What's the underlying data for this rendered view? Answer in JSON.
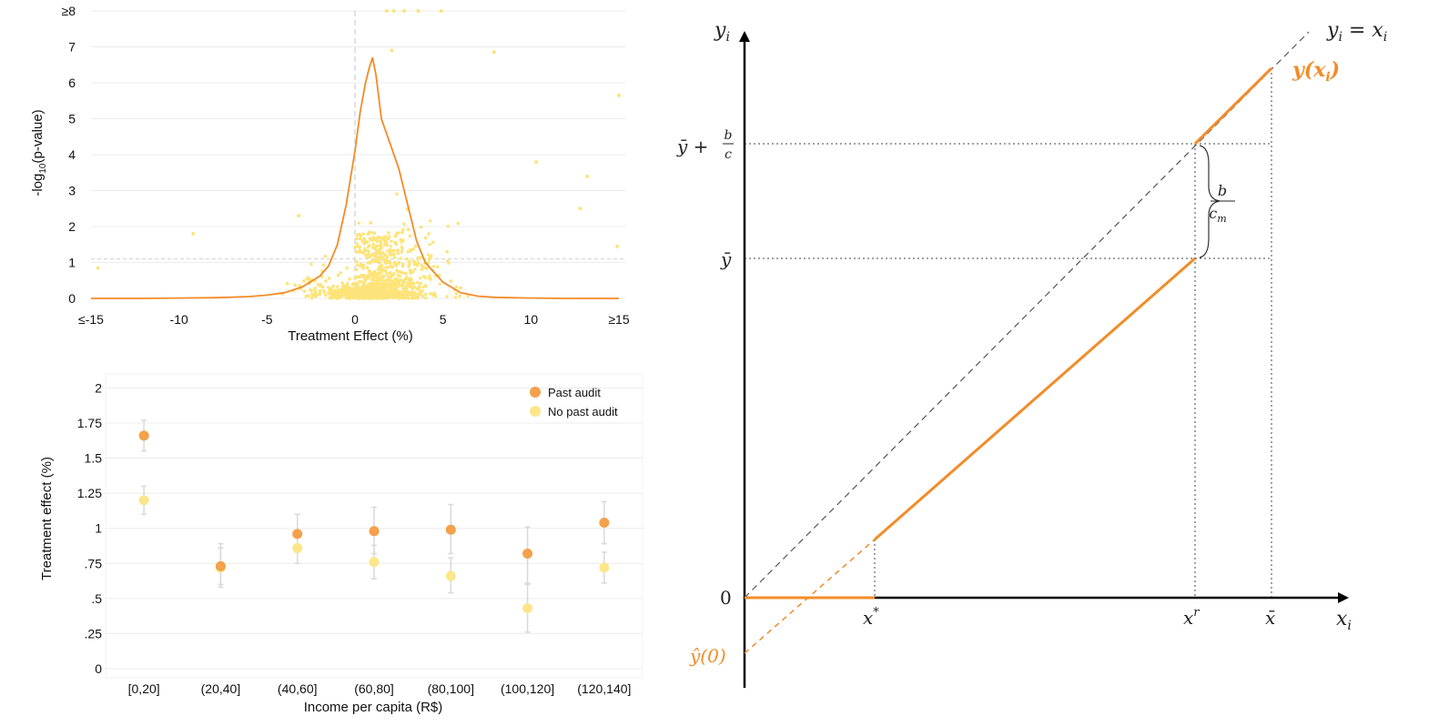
{
  "colors": {
    "orange": "#f28c28",
    "orange_dot": "#f5a04a",
    "yellow": "#fde47a",
    "yellow_dot": "#fde68a",
    "grid": "#ececec",
    "whisker": "#d9d9d9"
  },
  "chart_data": [
    {
      "type": "scatter",
      "xlabel": "Treatment Effect (%)",
      "ylabel": "-log10(p-value)",
      "ylabel_parts": {
        "pre": "-log",
        "sub": "10",
        "post": "(p-value)"
      },
      "xlim": [
        -15,
        15
      ],
      "ylim": [
        0,
        8
      ],
      "x_ticks": [
        -15,
        -10,
        -5,
        0,
        5,
        10,
        15
      ],
      "x_tick_labels": [
        "≤-15",
        "-10",
        "-5",
        "0",
        "5",
        "10",
        "≥15"
      ],
      "y_ticks": [
        0,
        1,
        2,
        3,
        4,
        5,
        6,
        7,
        8
      ],
      "y_tick_labels": [
        "0",
        "1",
        "2",
        "3",
        "4",
        "5",
        "6",
        "7",
        "≥8"
      ],
      "reference_lines": {
        "x": 0,
        "y": 1.1
      },
      "density_curve": {
        "x": [
          -15,
          -12,
          -10,
          -8,
          -6,
          -5,
          -4,
          -3,
          -2,
          -1.5,
          -1,
          -0.5,
          0,
          0.3,
          0.6,
          0.8,
          1,
          1.2,
          1.5,
          2,
          2.5,
          3,
          3.5,
          4,
          5,
          6,
          7,
          8,
          10,
          12,
          15
        ],
        "y": [
          0,
          0,
          0.01,
          0.02,
          0.05,
          0.09,
          0.16,
          0.32,
          0.62,
          0.9,
          1.5,
          2.6,
          4.1,
          5.2,
          6.0,
          6.4,
          6.7,
          6.2,
          5.0,
          4.3,
          3.6,
          2.6,
          1.6,
          1.0,
          0.45,
          0.16,
          0.06,
          0.03,
          0.01,
          0,
          0
        ]
      },
      "notable_points": [
        {
          "x": 1.8,
          "y": 8
        },
        {
          "x": 2.2,
          "y": 8
        },
        {
          "x": 2.8,
          "y": 8
        },
        {
          "x": 3.6,
          "y": 8
        },
        {
          "x": 4.9,
          "y": 8
        },
        {
          "x": 15,
          "y": 5.65
        },
        {
          "x": 7.9,
          "y": 6.85
        },
        {
          "x": 2.1,
          "y": 6.9
        },
        {
          "x": 10.3,
          "y": 3.8
        },
        {
          "x": 13.2,
          "y": 3.4
        },
        {
          "x": 12.8,
          "y": 2.5
        },
        {
          "x": 14.9,
          "y": 1.45
        },
        {
          "x": -9.2,
          "y": 1.8
        },
        {
          "x": -14.6,
          "y": 0.85
        },
        {
          "x": -3.2,
          "y": 2.3
        }
      ]
    },
    {
      "type": "scatter",
      "xlabel": "Income per capita (R$)",
      "ylabel": "Treatment effect (%)",
      "categories": [
        "[0,20]",
        "(20,40]",
        "(40,60]",
        "(60,80]",
        "(80,100]",
        "(100,120]",
        "(120,140]"
      ],
      "ylim": [
        0,
        2.1
      ],
      "y_ticks": [
        0,
        0.25,
        0.5,
        0.75,
        1,
        1.25,
        1.5,
        1.75,
        2
      ],
      "y_tick_labels": [
        "0",
        ".25",
        ".5",
        ".75",
        "1",
        "1.25",
        "1.5",
        "1.75",
        "2"
      ],
      "legend_position": "top-right",
      "series": [
        {
          "name": "Past audit",
          "values": [
            1.66,
            0.73,
            0.96,
            0.98,
            0.99,
            0.82,
            1.04
          ],
          "ci_low": [
            1.55,
            0.6,
            0.83,
            0.82,
            0.82,
            0.61,
            0.89
          ],
          "ci_high": [
            1.77,
            0.89,
            1.1,
            1.15,
            1.17,
            1.01,
            1.19
          ]
        },
        {
          "name": "No past audit",
          "values": [
            1.2,
            0.72,
            0.86,
            0.76,
            0.66,
            0.43,
            0.72
          ],
          "ci_low": [
            1.1,
            0.58,
            0.75,
            0.64,
            0.54,
            0.26,
            0.61
          ],
          "ci_high": [
            1.3,
            0.86,
            0.97,
            0.88,
            0.79,
            0.6,
            0.83
          ]
        }
      ]
    },
    {
      "type": "line",
      "xlabel": "x_i",
      "ylabel": "y_i",
      "x_tick_labels": [
        "x*",
        "x^r",
        "x̄"
      ],
      "y_tick_labels": [
        "0",
        "ȳ",
        "ȳ + b/c",
        "ŷ(0)"
      ],
      "diagonal_label": "y_i = x_i",
      "curve_label": "y(x_i)",
      "gap_label": "b/c_m",
      "x_values": {
        "x_star": 0.11,
        "x_r": 0.39,
        "x_bar": 0.455
      },
      "y_values": {
        "y_hat0": -0.045,
        "y_bar": 0.255,
        "y_bar_plus": 0.355
      },
      "xlim": [
        0,
        0.5
      ],
      "ylim": [
        -0.07,
        0.5
      ],
      "series": [
        {
          "x": [
            0,
            0.11
          ],
          "y": [
            0,
            0
          ]
        },
        {
          "x": [
            0.11,
            0.39
          ],
          "y": [
            0.04,
            0.255
          ]
        },
        {
          "x": [
            0.39,
            0.455
          ],
          "y": [
            0.39,
            0.455
          ]
        },
        {
          "x": [
            0,
            0.11
          ],
          "y": [
            -0.045,
            0.04
          ]
        },
        {
          "x": [
            0,
            0.5
          ],
          "y": [
            0,
            0.5
          ]
        }
      ]
    }
  ]
}
